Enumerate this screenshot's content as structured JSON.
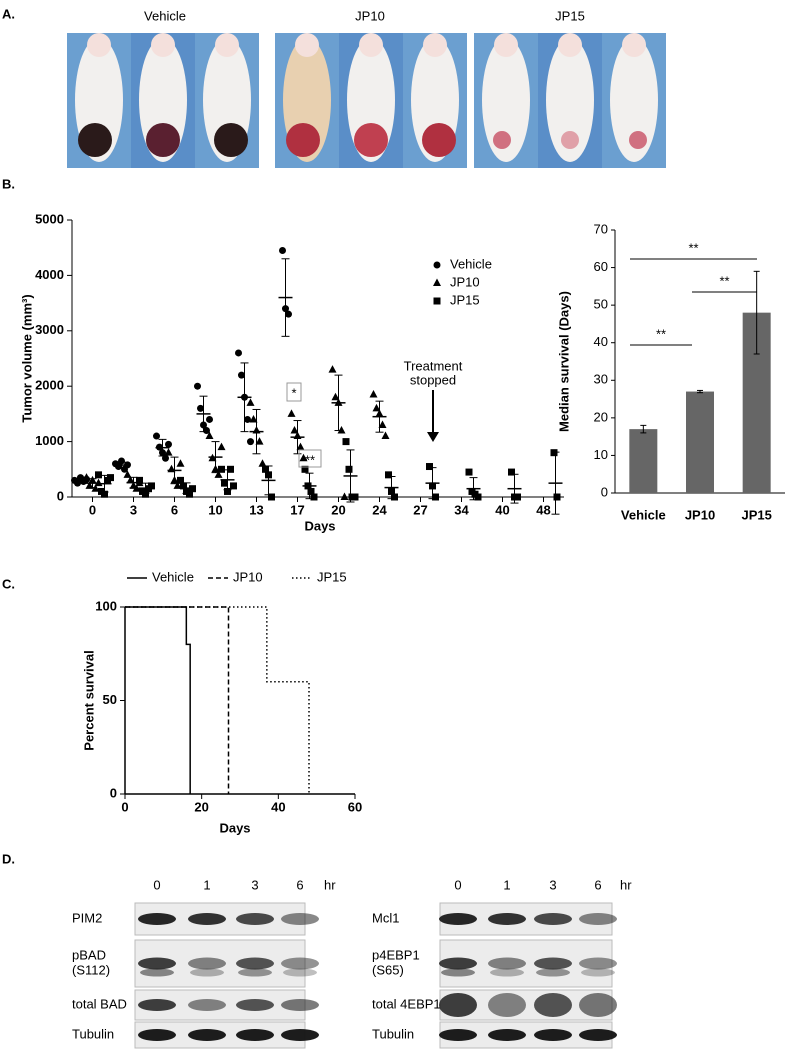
{
  "panel_labels": [
    "A.",
    "B.",
    "C.",
    "D."
  ],
  "photos": {
    "groups": [
      "Vehicle",
      "JP10",
      "JP15"
    ]
  },
  "chart_data": [
    {
      "type": "dot",
      "ylabel": "Tumor volume (mm³)",
      "xlabel": "Days",
      "categories": [
        "0",
        "3",
        "6",
        "10",
        "13",
        "17",
        "20",
        "24",
        "27",
        "34",
        "40",
        "48"
      ],
      "series": [
        {
          "name": "Vehicle",
          "color": "#000000",
          "marker": "circle",
          "points": [
            [
              300,
              250,
              350,
              280,
              320
            ],
            [
              600,
              550,
              650,
              500,
              580
            ],
            [
              1100,
              900,
              800,
              700,
              950
            ],
            [
              2000,
              1600,
              1300,
              1200,
              1400
            ],
            [
              2600,
              2200,
              1800,
              1400,
              1000
            ],
            [
              4450,
              3400,
              3300
            ],
            [],
            [],
            [],
            [],
            [],
            []
          ],
          "means": [
            300,
            576,
            890,
            1500,
            1800,
            3600,
            null,
            null,
            null,
            null,
            null,
            null
          ],
          "sd": [
            40,
            55,
            150,
            320,
            620,
            700,
            null,
            null,
            null,
            null,
            null,
            null
          ]
        },
        {
          "name": "JP10",
          "color": "#000000",
          "marker": "triangle",
          "points": [
            [
              350,
              200,
              300,
              150,
              250
            ],
            [
              400,
              300,
              200,
              150,
              250
            ],
            [
              800,
              500,
              300,
              200,
              600
            ],
            [
              1100,
              700,
              500,
              400,
              900
            ],
            [
              1700,
              1400,
              1200,
              1000,
              600
            ],
            [
              1500,
              1200,
              1100,
              900,
              700
            ],
            [
              2300,
              1800,
              1700,
              1200,
              0
            ],
            [
              1850,
              1600,
              1500,
              1300,
              1100
            ],
            [],
            [],
            [],
            []
          ],
          "means": [
            250,
            260,
            480,
            720,
            1180,
            1080,
            1700,
            1450,
            null,
            null,
            null,
            null
          ],
          "sd": [
            80,
            95,
            240,
            280,
            400,
            300,
            500,
            280,
            null,
            null,
            null,
            null
          ]
        },
        {
          "name": "JP15",
          "color": "#000000",
          "marker": "square",
          "points": [
            [
              400,
              100,
              50,
              300,
              350
            ],
            [
              300,
              100,
              50,
              150,
              200
            ],
            [
              300,
              200,
              100,
              50,
              150
            ],
            [
              500,
              250,
              100,
              500,
              200
            ],
            [
              500,
              400,
              0
            ],
            [
              500,
              200,
              100,
              0
            ],
            [
              1000,
              500,
              0,
              0
            ],
            [
              400,
              100,
              0
            ],
            [
              550,
              200,
              0
            ],
            [
              450,
              100,
              50,
              0
            ],
            [
              450,
              0,
              0
            ],
            [
              800,
              0
            ]
          ],
          "means": [
            240,
            160,
            160,
            310,
            300,
            200,
            380,
            170,
            250,
            150,
            150,
            250
          ],
          "sd": [
            150,
            90,
            95,
            180,
            260,
            230,
            470,
            200,
            280,
            200,
            260,
            560
          ]
        }
      ],
      "ylim": [
        0,
        5000
      ],
      "yticks": [
        0,
        1000,
        2000,
        3000,
        4000,
        5000
      ],
      "annotations": [
        "*",
        "**",
        [
          "Treatment",
          "stopped"
        ]
      ]
    },
    {
      "type": "bar",
      "ylabel": "Median survival (Days)",
      "categories": [
        "Vehicle",
        "JP10",
        "JP15"
      ],
      "values": [
        17,
        27,
        48
      ],
      "errors": [
        1,
        0.3,
        11
      ],
      "color": "#666666",
      "ylim": [
        0,
        70
      ],
      "yticks": [
        0,
        10,
        20,
        30,
        40,
        50,
        60,
        70
      ],
      "significance": [
        "**",
        "**",
        "**"
      ]
    },
    {
      "type": "step",
      "ylabel": "Percent survival",
      "xlabel": "Days",
      "series": [
        {
          "name": "Vehicle",
          "dash": "solid",
          "x": [
            0,
            16,
            16,
            17,
            17
          ],
          "values": [
            100,
            100,
            80,
            80,
            0
          ]
        },
        {
          "name": "JP10",
          "dash": "dashed",
          "x": [
            0,
            27,
            27
          ],
          "values": [
            100,
            100,
            0
          ]
        },
        {
          "name": "JP15",
          "dash": "dotted",
          "x": [
            0,
            37,
            37,
            48,
            48
          ],
          "values": [
            100,
            100,
            60,
            60,
            0
          ]
        }
      ],
      "xlim": [
        0,
        60
      ],
      "xticks": [
        0,
        20,
        40,
        60
      ],
      "ylim": [
        0,
        100
      ],
      "yticks": [
        0,
        50,
        100
      ]
    }
  ],
  "blots": [
    {
      "timepoints": [
        "0",
        "1",
        "3",
        "6"
      ],
      "unit": "hr",
      "rows": [
        [
          "PIM2"
        ],
        [
          "pBAD",
          "(S112)"
        ],
        [
          "total BAD"
        ],
        [
          "Tubulin"
        ]
      ]
    },
    {
      "timepoints": [
        "0",
        "1",
        "3",
        "6"
      ],
      "unit": "hr",
      "rows": [
        [
          "Mcl1"
        ],
        [
          "p4EBP1",
          "(S65)"
        ],
        [
          "total 4EBP1"
        ],
        [
          "Tubulin"
        ]
      ]
    }
  ]
}
